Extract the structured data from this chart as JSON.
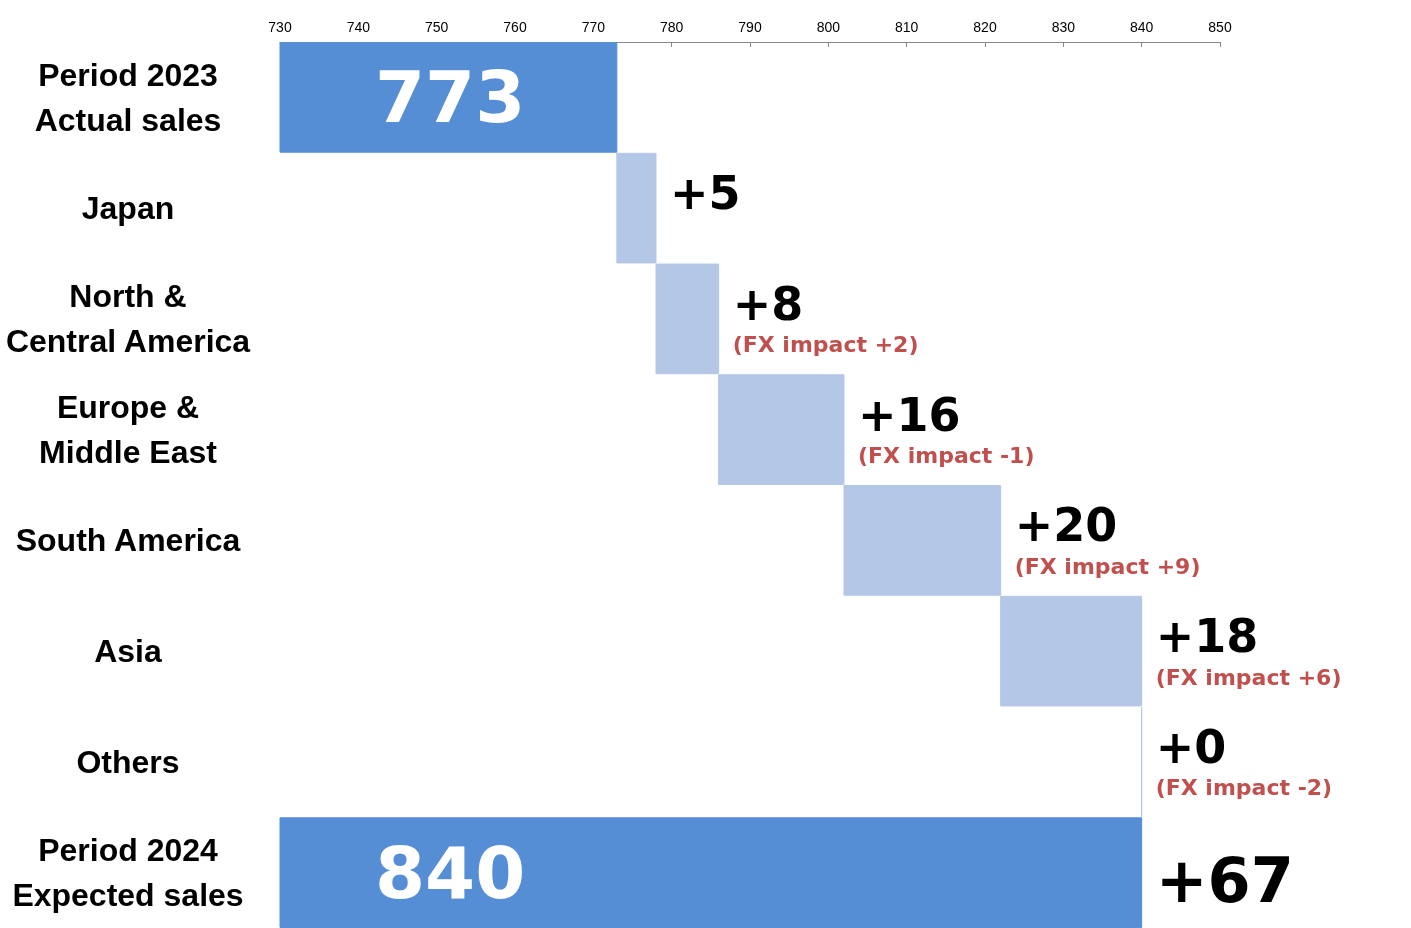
{
  "chart_data": {
    "type": "bar",
    "orientation": "horizontal",
    "categories": [
      "Period 2023\nActual sales",
      "Japan",
      "North &\nCentral America",
      "Europe &\nMiddle East",
      "South America",
      "Asia",
      "Others",
      "Period 2024\nExpected sales"
    ],
    "values": [
      773,
      5,
      8,
      16,
      20,
      18,
      0,
      840
    ],
    "base": [
      null,
      773,
      778,
      786,
      802,
      822,
      840,
      null
    ],
    "colors": [
      "#558ed5",
      "#b4c7e7",
      "#b4c7e7",
      "#b4c7e7",
      "#b4c7e7",
      "#b4c7e7",
      "#b4c7e7",
      "#558ed5"
    ],
    "value_labels": [
      "773",
      "+5",
      "+8",
      "+16",
      "+20",
      "+18",
      "+0",
      "840"
    ],
    "xlim": [
      730,
      850
    ],
    "xticks": [
      730,
      740,
      750,
      760,
      770,
      780,
      790,
      800,
      810,
      820,
      830,
      840,
      850
    ],
    "grid": false,
    "annotations": [
      {
        "text": "(FX impact +2)",
        "x": 786,
        "y": "North &\nCentral America"
      },
      {
        "text": "(FX impact -1)",
        "x": 802,
        "y": "Europe &\nMiddle East"
      },
      {
        "text": "(FX impact +9)",
        "x": 822,
        "y": "South America"
      },
      {
        "text": "(FX impact +6)",
        "x": 840,
        "y": "Asia"
      },
      {
        "text": "(FX impact -2)",
        "x": 840,
        "y": "Others"
      },
      {
        "text": "+67",
        "x": 840,
        "y": "Period 2024\nExpected sales"
      }
    ]
  }
}
